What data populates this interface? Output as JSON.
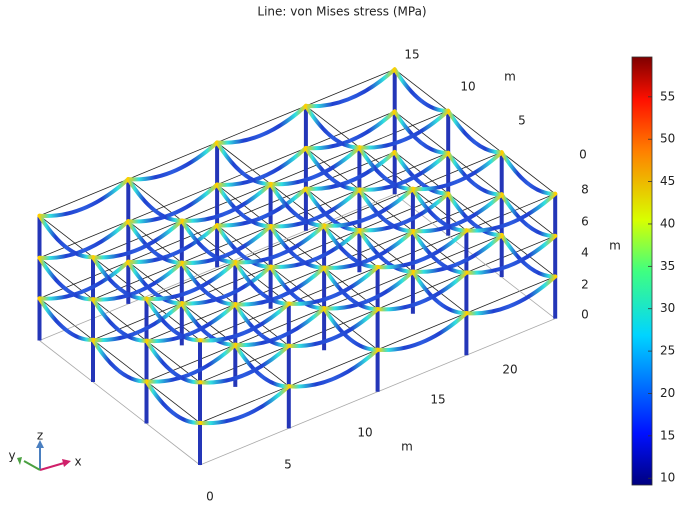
{
  "title": "Line: von Mises stress (MPa)",
  "colorbar": {
    "range": [
      9.2,
      59.7
    ],
    "ticks": [
      10,
      15,
      20,
      25,
      30,
      35,
      40,
      45,
      50,
      55
    ]
  },
  "axes": {
    "x": {
      "ticks": [
        "0",
        "5",
        "10",
        "15",
        "20"
      ],
      "unit": "m"
    },
    "y": {
      "ticks": [
        "15",
        "10",
        "5",
        "0"
      ],
      "unit": "m"
    },
    "z": {
      "ticks": [
        "0",
        "2",
        "4",
        "6",
        "8"
      ],
      "unit": "m"
    }
  },
  "triad": {
    "x": "x",
    "y": "y",
    "z": "z"
  }
}
